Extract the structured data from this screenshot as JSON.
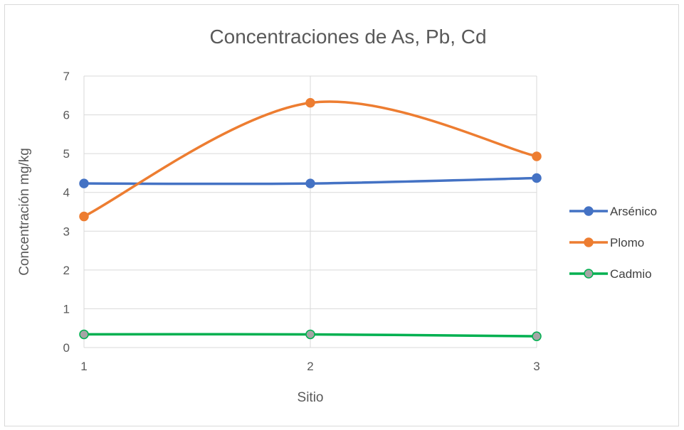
{
  "chart_data": {
    "type": "line",
    "title": "Concentraciones de As, Pb, Cd",
    "xlabel": "Sitio",
    "ylabel": "Concentración mg/kg",
    "categories": [
      "1",
      "2",
      "3"
    ],
    "xlim": [
      1,
      3
    ],
    "ylim": [
      0,
      7
    ],
    "yticks": [
      "0",
      "1",
      "2",
      "3",
      "4",
      "5",
      "6",
      "7"
    ],
    "grid": true,
    "smooth": true,
    "legend_position": "right",
    "series": [
      {
        "name": "Arsénico",
        "values": [
          4.23,
          4.23,
          4.37
        ],
        "color": "#4472C4"
      },
      {
        "name": "Plomo",
        "values": [
          3.38,
          6.31,
          4.93
        ],
        "color": "#ED7D31"
      },
      {
        "name": "Cadmio",
        "values": [
          0.34,
          0.34,
          0.29
        ],
        "color": "#00B050",
        "marker_fill": "#A5A5A5"
      }
    ]
  }
}
